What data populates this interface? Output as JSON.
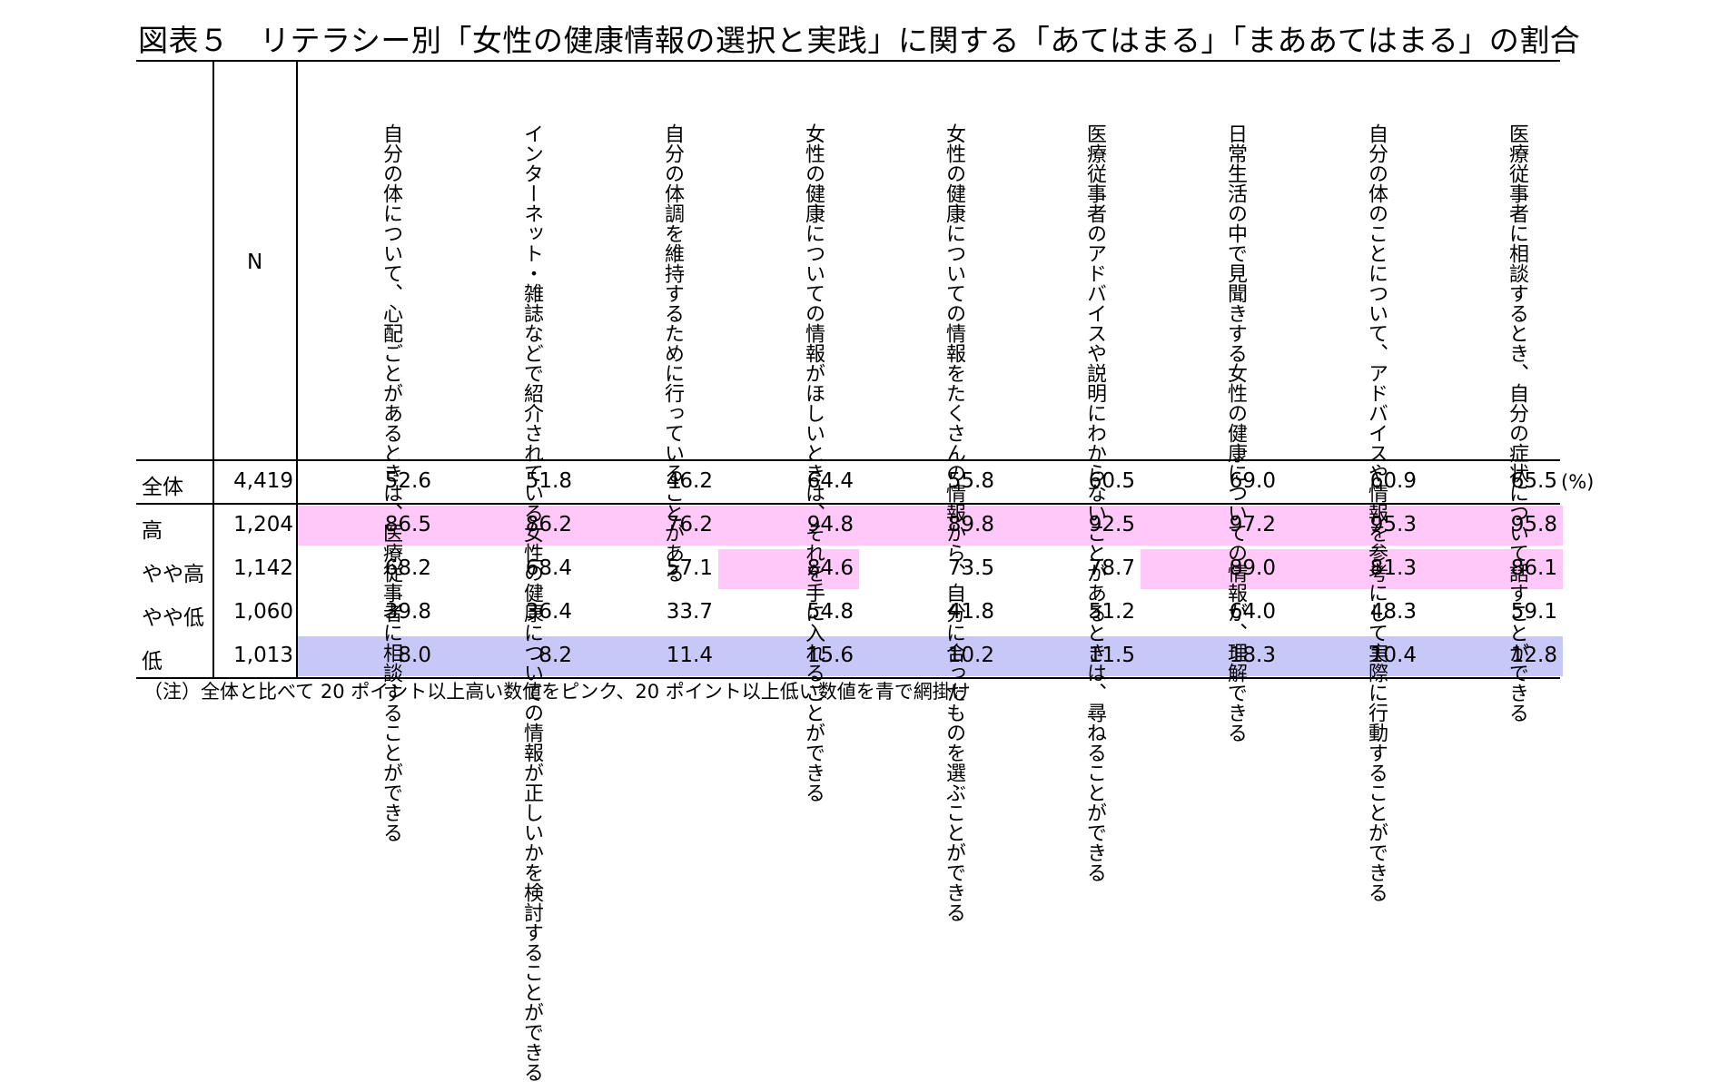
{
  "title": "図表５　リテラシー別「女性の健康情報の選択と実践」に関する「あてはまる」「まああてはまる」の割合",
  "n_header": "N",
  "unit": "(%)",
  "note": "（注）全体と比べて 20 ポイント以上高い数値をピンク、20 ポイント以上低い数値を青で網掛け",
  "colors": {
    "pink": "#ffc8f8",
    "blue": "#c8c8f8"
  },
  "chart_data": {
    "type": "table",
    "columns": [
      "自分の体について、心配ごとがあるときは、医療従事者に相談することができる",
      "インターネット・雑誌などで紹介されている女性の健康についての情報が正しいかを検討することができる",
      "自分の体調を維持するために行っていることがある",
      "女性の健康についての情報がほしいときは、それを手に入れることができる",
      "女性の健康についての情報をたくさんの情報から、自分に合ったものを選ぶことができる",
      "医療従事者のアドバイスや説明にわからないことがあるときは、尋ねることができる",
      "日常生活の中で見聞きする女性の健康についての情報が、理解できる",
      "自分の体のことについて、アドバイスや情報を参考にして実際に行動することができる",
      "医療従事者に相談するとき、自分の症状について話すことができる"
    ],
    "rows": [
      {
        "label": "全体",
        "n": "4,419",
        "values": [
          "52.6",
          "51.8",
          "46.2",
          "64.4",
          "55.8",
          "60.5",
          "69.0",
          "60.9",
          "65.5"
        ],
        "highlight": [
          "",
          "",
          "",
          "",
          "",
          "",
          "",
          "",
          ""
        ]
      },
      {
        "label": "高",
        "n": "1,204",
        "values": [
          "86.5",
          "86.2",
          "76.2",
          "94.8",
          "89.8",
          "92.5",
          "97.2",
          "95.3",
          "95.8"
        ],
        "highlight": [
          "pink",
          "pink",
          "pink",
          "pink",
          "pink",
          "pink",
          "pink",
          "pink",
          "pink"
        ]
      },
      {
        "label": "やや高",
        "n": "1,142",
        "values": [
          "68.2",
          "68.4",
          "57.1",
          "84.6",
          "73.5",
          "78.7",
          "89.0",
          "81.3",
          "86.1"
        ],
        "highlight": [
          "",
          "",
          "",
          "pink",
          "",
          "",
          "pink",
          "pink",
          "pink"
        ]
      },
      {
        "label": "やや低",
        "n": "1,060",
        "values": [
          "39.8",
          "36.4",
          "33.7",
          "54.8",
          "41.8",
          "51.2",
          "64.0",
          "48.3",
          "59.1"
        ],
        "highlight": [
          "",
          "",
          "",
          "",
          "",
          "",
          "",
          "",
          ""
        ]
      },
      {
        "label": "低",
        "n": "1,013",
        "values": [
          "8.0",
          "8.2",
          "11.4",
          "15.6",
          "10.2",
          "11.5",
          "18.3",
          "10.4",
          "12.8"
        ],
        "highlight": [
          "blue",
          "blue",
          "blue",
          "blue",
          "blue",
          "blue",
          "blue",
          "blue",
          "blue"
        ]
      }
    ]
  }
}
